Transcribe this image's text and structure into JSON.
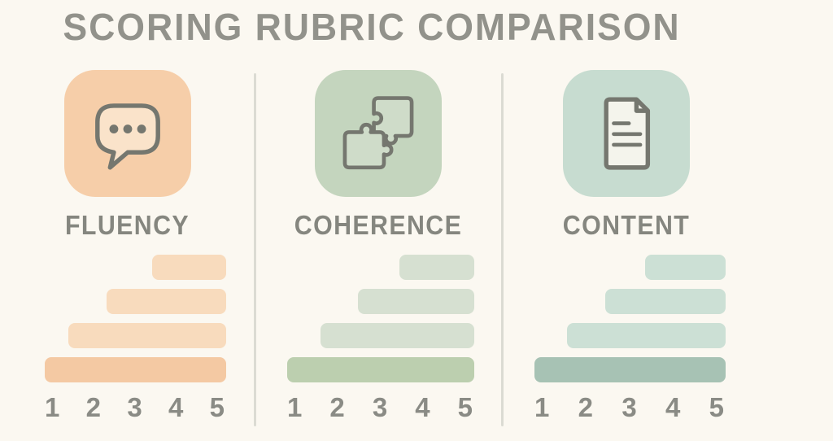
{
  "title": "SCORING RUBRIC COMPARISON",
  "colors": {
    "background": "#FBF8F1",
    "title_text": "#92928B",
    "label_text": "#85867F",
    "tick_text": "#8A8B85",
    "divider": "#DBDBD3",
    "icon_stroke": "#75776F"
  },
  "panels": [
    {
      "label": "FLUENCY",
      "icon": "speech-bubble-icon",
      "tile_bg": "#F6CEA9",
      "icon_fill": "#FAE3CA",
      "bar_color": "#F8DBBD",
      "bar_color_emphasis": "#F4C9A3"
    },
    {
      "label": "COHERENCE",
      "icon": "puzzle-icon",
      "tile_bg": "#C4D5BE",
      "icon_fill": "#CFDCC9",
      "bar_color": "#D6E0D1",
      "bar_color_emphasis": "#BCCFAF"
    },
    {
      "label": "CONTENT",
      "icon": "document-icon",
      "tile_bg": "#C7DCD0",
      "icon_fill": "#F4F4EC",
      "bar_color": "#CCE0D5",
      "bar_color_emphasis": "#A7C2B4"
    }
  ],
  "chart_data": [
    {
      "type": "bar",
      "orientation": "horizontal",
      "title": "FLUENCY",
      "x_ticks": [
        "1",
        "2",
        "3",
        "4",
        "5"
      ],
      "xlim": [
        1,
        5
      ],
      "bars_top_to_bottom_pct_of_longest": [
        41,
        66,
        87,
        100
      ],
      "bar_alignment": "right",
      "emphasized_bar": "bottom",
      "grid": false,
      "legend": false
    },
    {
      "type": "bar",
      "orientation": "horizontal",
      "title": "COHERENCE",
      "x_ticks": [
        "1",
        "2",
        "3",
        "4",
        "5"
      ],
      "xlim": [
        1,
        5
      ],
      "bars_top_to_bottom_pct_of_longest": [
        40,
        62,
        82,
        100
      ],
      "bar_alignment": "right",
      "emphasized_bar": "bottom",
      "grid": false,
      "legend": false
    },
    {
      "type": "bar",
      "orientation": "horizontal",
      "title": "CONTENT",
      "x_ticks": [
        "1",
        "2",
        "3",
        "4",
        "5"
      ],
      "xlim": [
        1,
        5
      ],
      "bars_top_to_bottom_pct_of_longest": [
        42,
        63,
        83,
        100
      ],
      "bar_alignment": "right",
      "emphasized_bar": "bottom",
      "grid": false,
      "legend": false
    }
  ]
}
